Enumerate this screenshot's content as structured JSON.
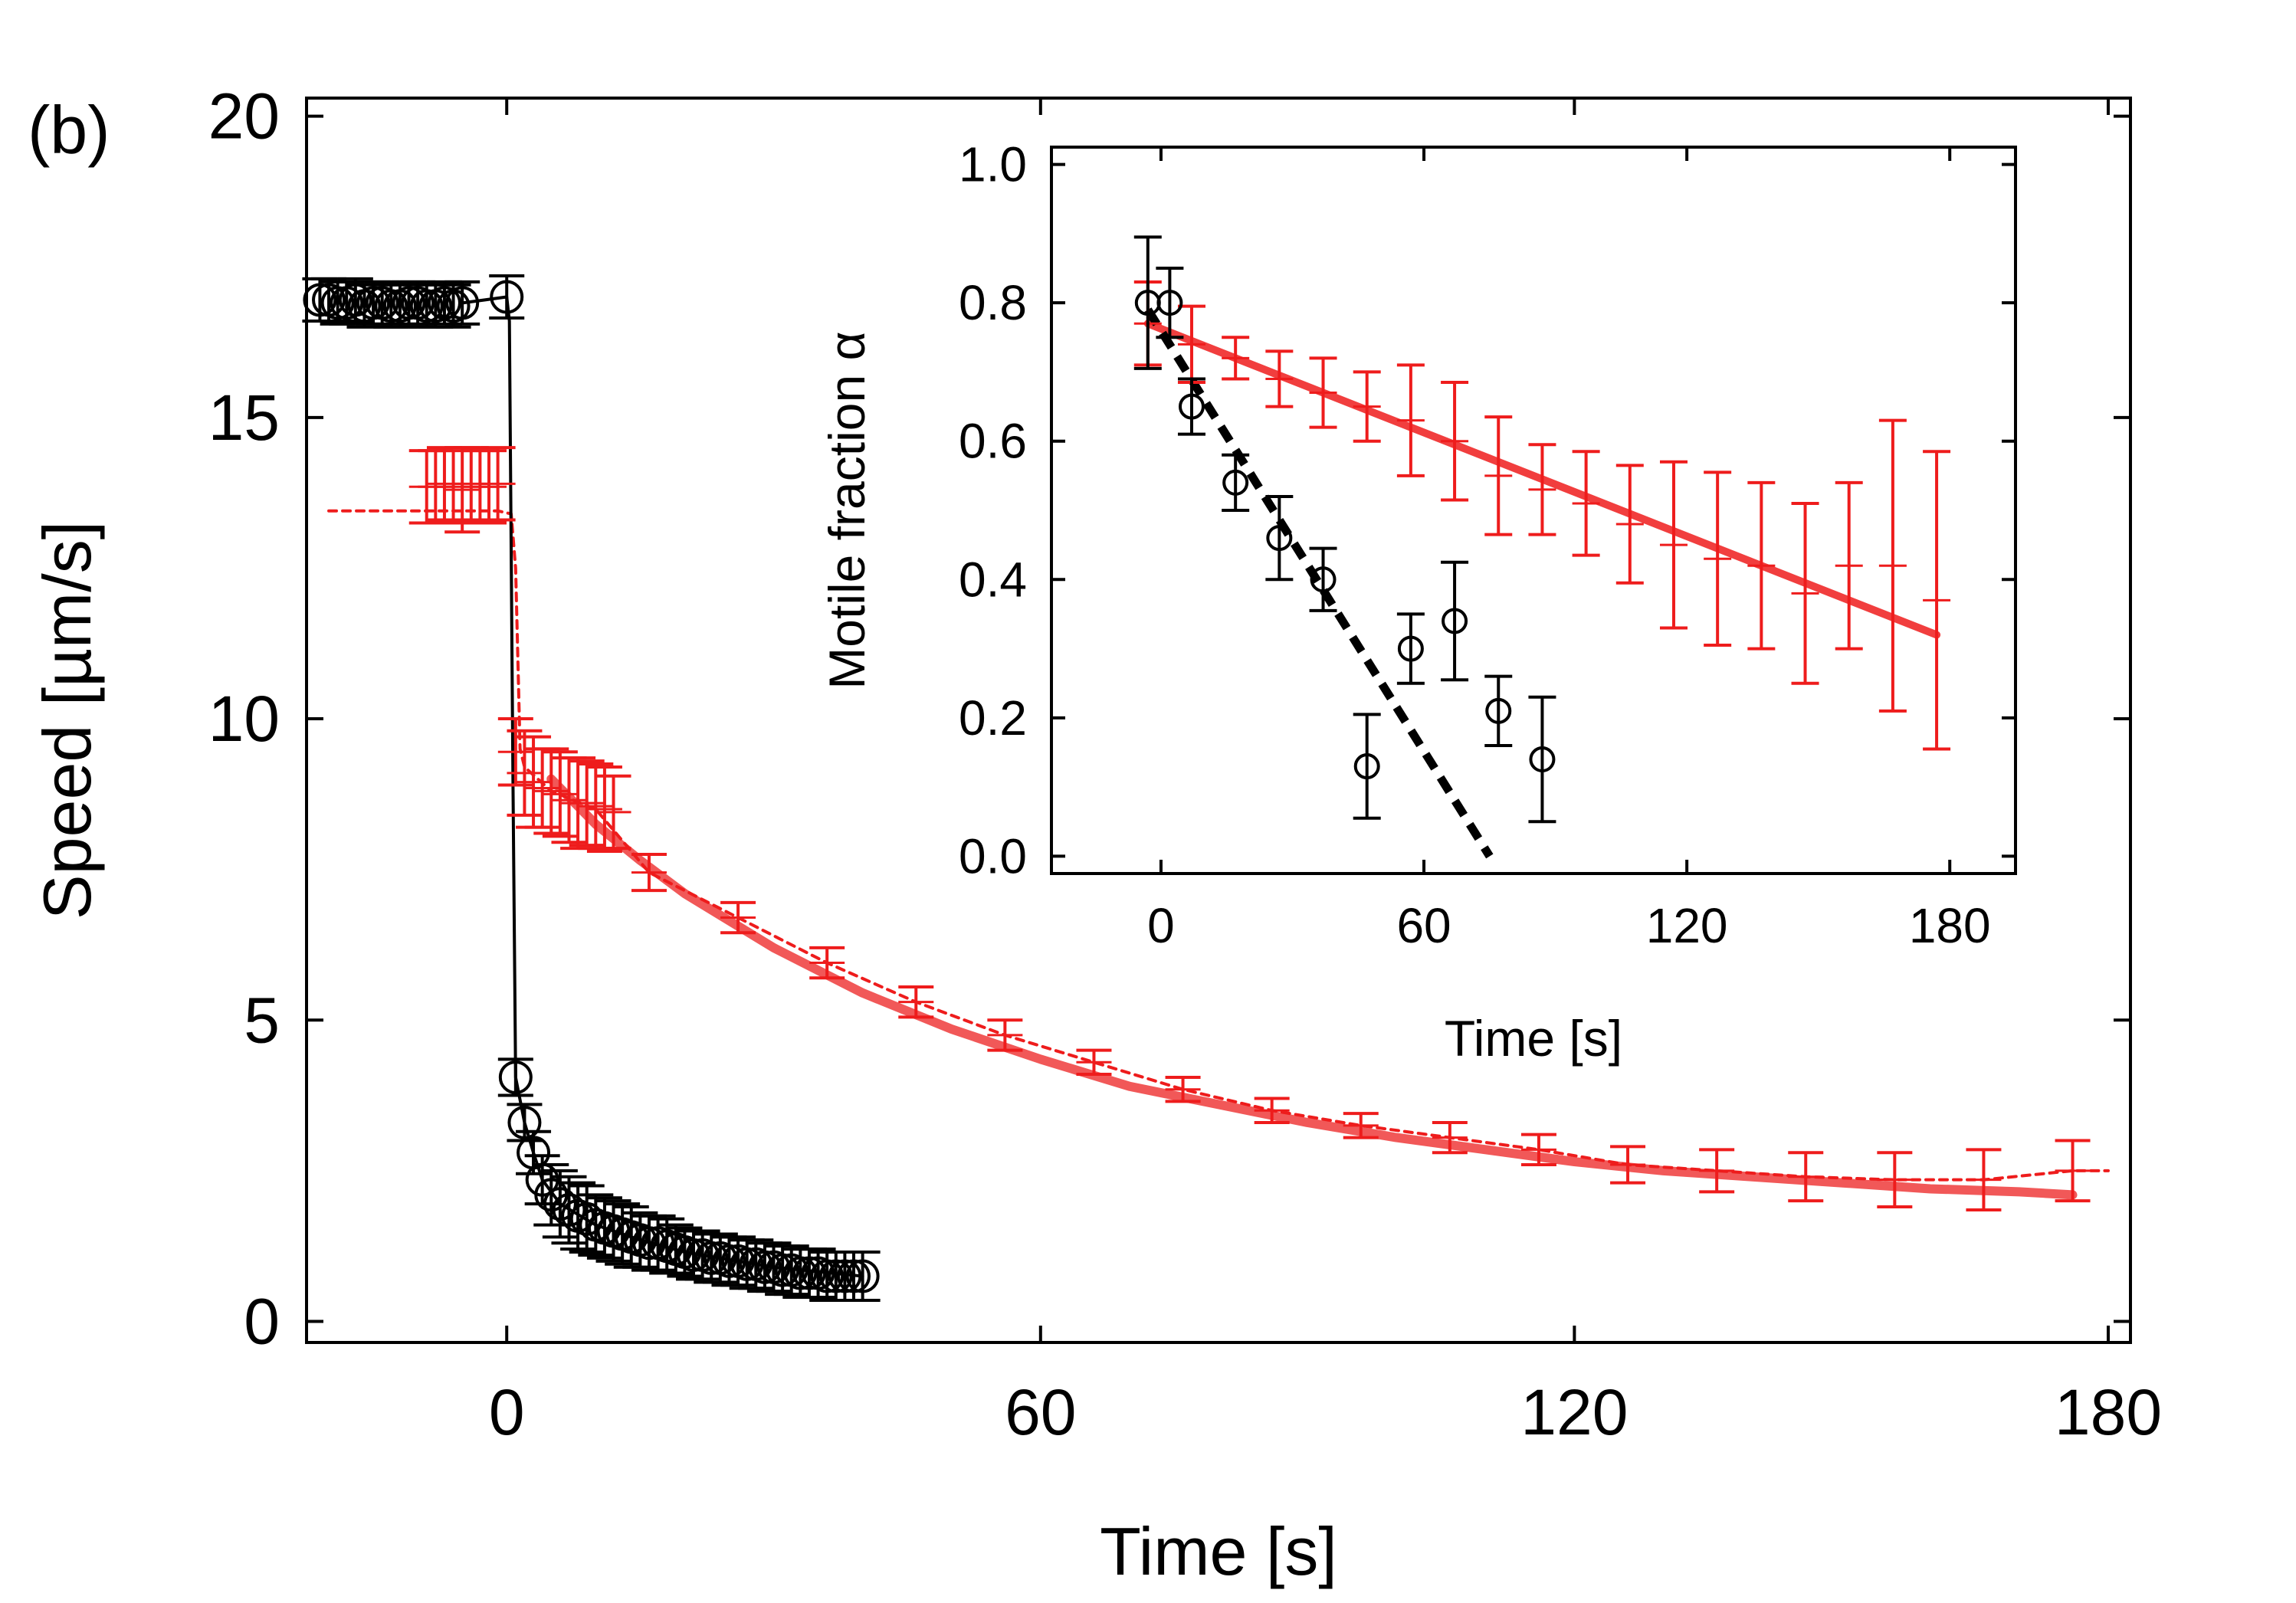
{
  "panel_label": "(b)",
  "colors": {
    "black": "#000000",
    "red": "#ee1c1c",
    "red_fit": "#ee3b3b"
  },
  "chart_data": [
    {
      "id": "main",
      "type": "scatter",
      "title": "",
      "xlabel": "Time [s]",
      "ylabel": "Speed [µm/s]",
      "xlim": [
        -22.5,
        182.5
      ],
      "ylim": [
        -0.35,
        20.3
      ],
      "xticks": [
        0,
        60,
        120,
        180
      ],
      "xtick_labels": [
        "0",
        "60",
        "120",
        "180"
      ],
      "yticks": [
        0,
        5,
        10,
        15,
        20
      ],
      "ytick_labels": [
        "0",
        "5",
        "10",
        "15",
        "20"
      ],
      "series": [
        {
          "name": "black circles (pre)",
          "color": "#000000",
          "marker": "circle",
          "x": [
            -21,
            -20,
            -19,
            -18,
            -17,
            -16,
            -15,
            -14,
            -13,
            -12,
            -11,
            -10,
            -9,
            -8,
            -7,
            -6,
            -5,
            0
          ],
          "y": [
            16.95,
            16.95,
            16.9,
            16.9,
            16.95,
            16.85,
            16.9,
            16.9,
            16.85,
            16.85,
            16.9,
            16.9,
            16.85,
            16.85,
            16.9,
            16.85,
            16.9,
            17.0
          ],
          "err": [
            0.35,
            0.35,
            0.35,
            0.35,
            0.35,
            0.35,
            0.35,
            0.35,
            0.35,
            0.35,
            0.35,
            0.35,
            0.35,
            0.35,
            0.35,
            0.35,
            0.35,
            0.35
          ]
        },
        {
          "name": "black circles (post)",
          "color": "#000000",
          "marker": "circle",
          "x": [
            1,
            2,
            3,
            4,
            5,
            6,
            7,
            8,
            9,
            10,
            11,
            12,
            13,
            14,
            15,
            16,
            17,
            18,
            19,
            20,
            21,
            22,
            23,
            24,
            25,
            26,
            27,
            28,
            29,
            30,
            31,
            32,
            33,
            34,
            35,
            36,
            37,
            38,
            39,
            40
          ],
          "y": [
            4.05,
            3.3,
            2.8,
            2.35,
            2.1,
            1.95,
            1.85,
            1.75,
            1.7,
            1.6,
            1.55,
            1.5,
            1.45,
            1.4,
            1.35,
            1.3,
            1.3,
            1.25,
            1.2,
            1.15,
            1.1,
            1.1,
            1.05,
            1.05,
            1.0,
            1.0,
            0.95,
            0.95,
            0.9,
            0.9,
            0.85,
            0.85,
            0.8,
            0.8,
            0.8,
            0.75,
            0.75,
            0.75,
            0.75,
            0.75
          ],
          "err": [
            0.3,
            0.3,
            0.35,
            0.4,
            0.5,
            0.55,
            0.55,
            0.55,
            0.55,
            0.5,
            0.5,
            0.5,
            0.5,
            0.5,
            0.45,
            0.45,
            0.45,
            0.45,
            0.4,
            0.4,
            0.4,
            0.4,
            0.4,
            0.4,
            0.4,
            0.4,
            0.4,
            0.4,
            0.4,
            0.4,
            0.4,
            0.4,
            0.4,
            0.4,
            0.4,
            0.4,
            0.4,
            0.4,
            0.4,
            0.4
          ]
        },
        {
          "name": "black connector",
          "color": "#000000",
          "marker": "line",
          "x": [
            -5,
            0,
            0.3,
            0.7,
            1,
            2,
            3,
            4,
            6,
            10,
            15,
            20,
            30,
            40
          ],
          "y": [
            16.9,
            17.0,
            16.6,
            9.0,
            4.05,
            3.3,
            2.8,
            2.35,
            1.95,
            1.6,
            1.35,
            1.15,
            0.9,
            0.75
          ]
        },
        {
          "name": "red points (pre)",
          "color": "#ee1c1c",
          "marker": "errbar",
          "x": [
            -9,
            -8,
            -7,
            -6,
            -5,
            -4,
            -3,
            -2,
            -1
          ],
          "y": [
            13.85,
            13.85,
            13.9,
            13.85,
            13.8,
            13.9,
            13.85,
            13.85,
            13.9
          ],
          "err": [
            0.6,
            0.6,
            0.6,
            0.6,
            0.7,
            0.6,
            0.6,
            0.6,
            0.6
          ]
        },
        {
          "name": "red points (post)",
          "color": "#ee1c1c",
          "marker": "errbar",
          "x": [
            1,
            2,
            3,
            4,
            5,
            6,
            7,
            8,
            9,
            10,
            11,
            12,
            16,
            26,
            36,
            46,
            56,
            66,
            76,
            86,
            96,
            106,
            116,
            126,
            136,
            146,
            156,
            166,
            176
          ],
          "y": [
            9.45,
            9.1,
            8.95,
            8.85,
            8.8,
            8.75,
            8.65,
            8.6,
            8.6,
            8.55,
            8.5,
            8.45,
            7.45,
            6.7,
            5.95,
            5.3,
            4.75,
            4.3,
            3.85,
            3.5,
            3.25,
            3.05,
            2.85,
            2.6,
            2.5,
            2.4,
            2.35,
            2.35,
            2.5
          ],
          "err": [
            0.55,
            0.7,
            0.75,
            0.65,
            0.7,
            0.7,
            0.7,
            0.75,
            0.7,
            0.7,
            0.7,
            0.6,
            0.3,
            0.25,
            0.25,
            0.25,
            0.25,
            0.2,
            0.2,
            0.2,
            0.2,
            0.25,
            0.25,
            0.3,
            0.35,
            0.4,
            0.45,
            0.5,
            0.5
          ]
        },
        {
          "name": "red dotted trace",
          "color": "#ee1c1c",
          "marker": "dotted",
          "x": [
            -20,
            -10,
            -1,
            0.5,
            1,
            1.5,
            2,
            5,
            10,
            16,
            26,
            36,
            46,
            56,
            66,
            76,
            86,
            96,
            106,
            116,
            126,
            136,
            146,
            156,
            166,
            176,
            180
          ],
          "y": [
            13.45,
            13.45,
            13.45,
            13.4,
            12.5,
            9.5,
            9.2,
            8.8,
            8.5,
            7.45,
            6.7,
            5.95,
            5.3,
            4.75,
            4.3,
            3.85,
            3.5,
            3.25,
            3.05,
            2.85,
            2.6,
            2.5,
            2.4,
            2.35,
            2.35,
            2.5,
            2.5
          ]
        },
        {
          "name": "red fit",
          "color": "#ee3b3b",
          "marker": "thick",
          "x": [
            5,
            10,
            15,
            20,
            30,
            40,
            50,
            60,
            70,
            80,
            90,
            100,
            110,
            120,
            130,
            140,
            150,
            160,
            170,
            176
          ],
          "y": [
            9.0,
            8.25,
            7.65,
            7.1,
            6.2,
            5.45,
            4.85,
            4.35,
            3.9,
            3.6,
            3.3,
            3.05,
            2.85,
            2.65,
            2.5,
            2.4,
            2.3,
            2.2,
            2.15,
            2.1
          ]
        }
      ]
    },
    {
      "id": "inset",
      "type": "scatter",
      "title": "",
      "xlabel": "Time [s]",
      "ylabel": "Motile fraction α",
      "xlim": [
        -25,
        195
      ],
      "ylim": [
        -0.025,
        1.025
      ],
      "xticks": [
        0,
        60,
        120,
        180
      ],
      "xtick_labels": [
        "0",
        "60",
        "120",
        "180"
      ],
      "yticks": [
        0.0,
        0.2,
        0.4,
        0.6,
        0.8,
        1.0
      ],
      "ytick_labels": [
        "0.0",
        "0.2",
        "0.4",
        "0.6",
        "0.8",
        "1.0"
      ],
      "series": [
        {
          "name": "black circles",
          "color": "#000000",
          "marker": "circle",
          "x": [
            -3,
            2,
            7,
            17,
            27,
            37,
            47,
            57,
            67,
            77,
            87
          ],
          "y": [
            0.8,
            0.8,
            0.65,
            0.54,
            0.46,
            0.4,
            0.13,
            0.3,
            0.34,
            0.21,
            0.14
          ],
          "err": [
            0.095,
            0.05,
            0.04,
            0.04,
            0.06,
            0.045,
            0.075,
            0.05,
            0.085,
            0.05,
            0.09
          ]
        },
        {
          "name": "black dashed fit",
          "color": "#000000",
          "marker": "dashed",
          "x": [
            -3,
            75
          ],
          "y": [
            0.79,
            0.0
          ]
        },
        {
          "name": "red errbars",
          "color": "#ee1c1c",
          "marker": "errbar",
          "x": [
            -3,
            7,
            17,
            27,
            37,
            47,
            57,
            67,
            77,
            87,
            97,
            107,
            117,
            127,
            137,
            147,
            157,
            167,
            177
          ],
          "y": [
            0.77,
            0.74,
            0.72,
            0.69,
            0.67,
            0.65,
            0.63,
            0.6,
            0.55,
            0.53,
            0.51,
            0.48,
            0.45,
            0.43,
            0.42,
            0.38,
            0.42,
            0.42,
            0.37
          ],
          "err": [
            0.06,
            0.055,
            0.03,
            0.04,
            0.05,
            0.05,
            0.08,
            0.085,
            0.085,
            0.065,
            0.075,
            0.085,
            0.12,
            0.125,
            0.12,
            0.13,
            0.12,
            0.21,
            0.215
          ]
        },
        {
          "name": "red fit",
          "color": "#ee1c1c",
          "marker": "thick",
          "x": [
            -3,
            177
          ],
          "y": [
            0.77,
            0.32
          ]
        }
      ]
    }
  ]
}
